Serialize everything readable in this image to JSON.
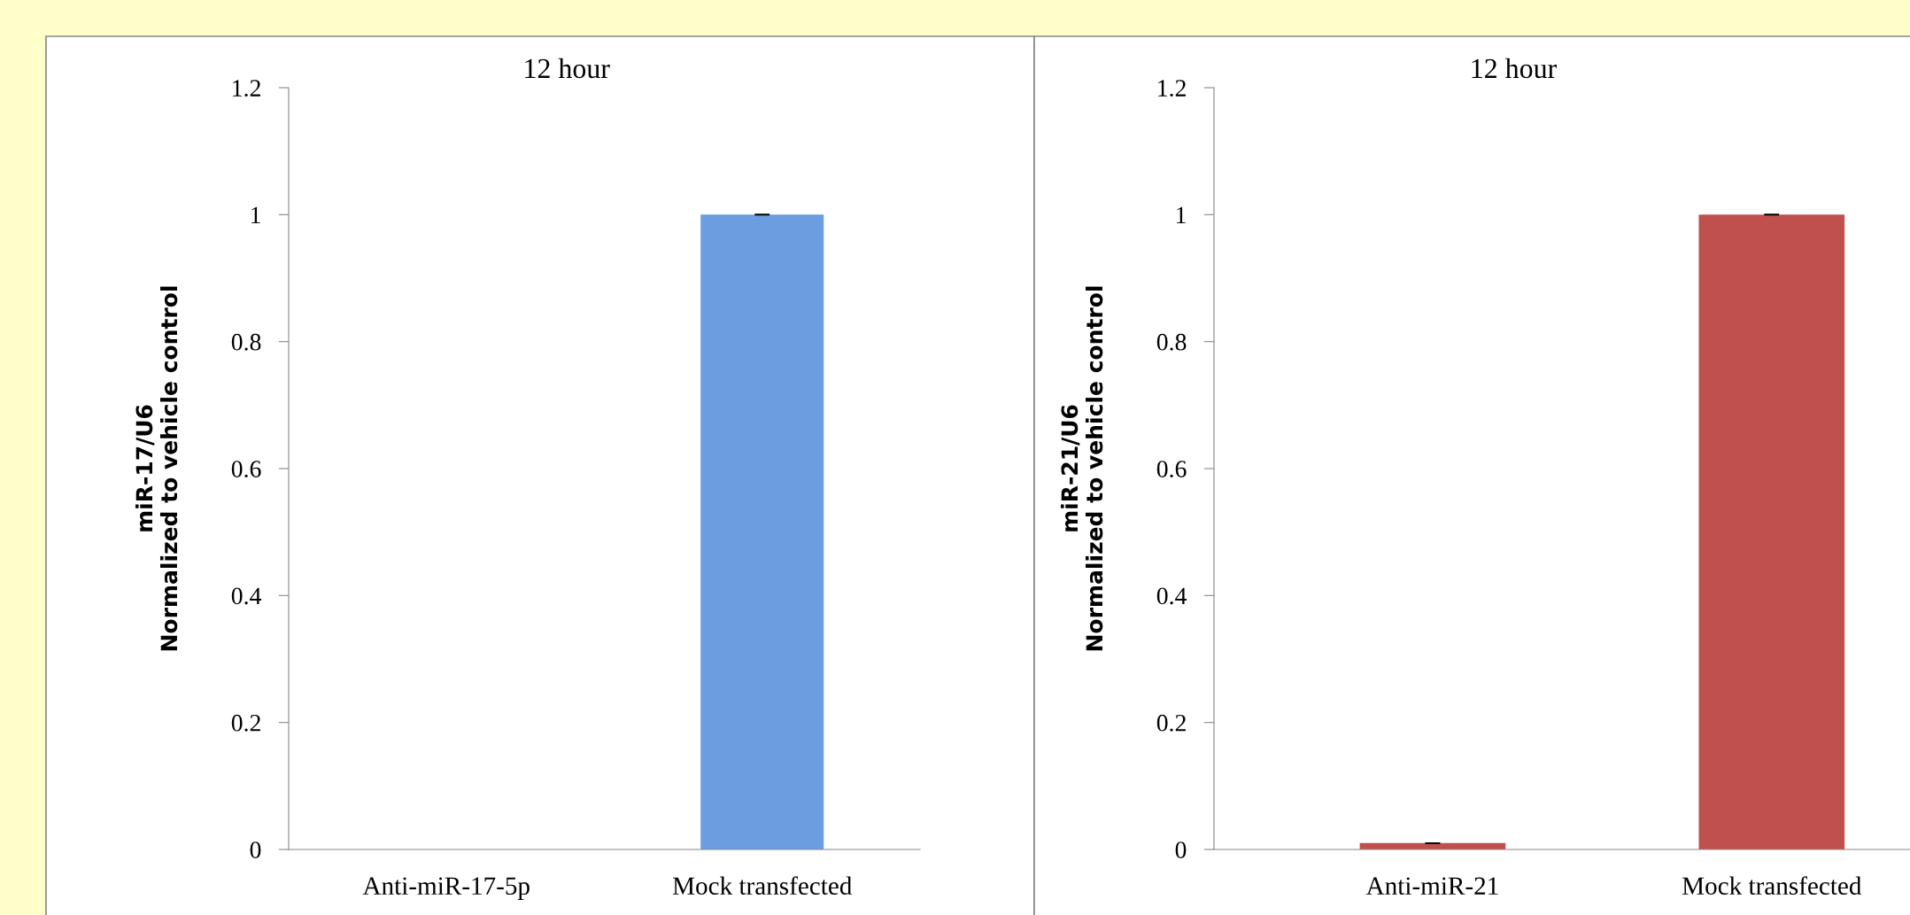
{
  "chart_data": [
    {
      "type": "bar",
      "title": "12 hour",
      "ylabel": "miR-17/U6\nNormalized to vehicle control",
      "categories": [
        "Anti-miR-17-5p",
        "Mock transfected"
      ],
      "values": [
        0,
        1
      ],
      "errors": [
        null,
        0
      ],
      "colors": [
        "#6b9de0",
        "#6b9de0"
      ],
      "ylim": [
        0,
        1.2
      ],
      "yticks": [
        0,
        0.2,
        0.4,
        0.6,
        0.8,
        1,
        1.2
      ],
      "grid": false,
      "legend": false
    },
    {
      "type": "bar",
      "title": "12 hour",
      "ylabel": "miR-21/U6\nNormalized to vehicle control",
      "categories": [
        "Anti-miR-21",
        "Mock transfected"
      ],
      "values": [
        0.01,
        1
      ],
      "errors": [
        0,
        0
      ],
      "colors": [
        "#c0504d",
        "#c0504d"
      ],
      "ylim": [
        0,
        1.2
      ],
      "yticks": [
        0,
        0.2,
        0.4,
        0.6,
        0.8,
        1,
        1.2
      ],
      "grid": false,
      "legend": false
    }
  ]
}
